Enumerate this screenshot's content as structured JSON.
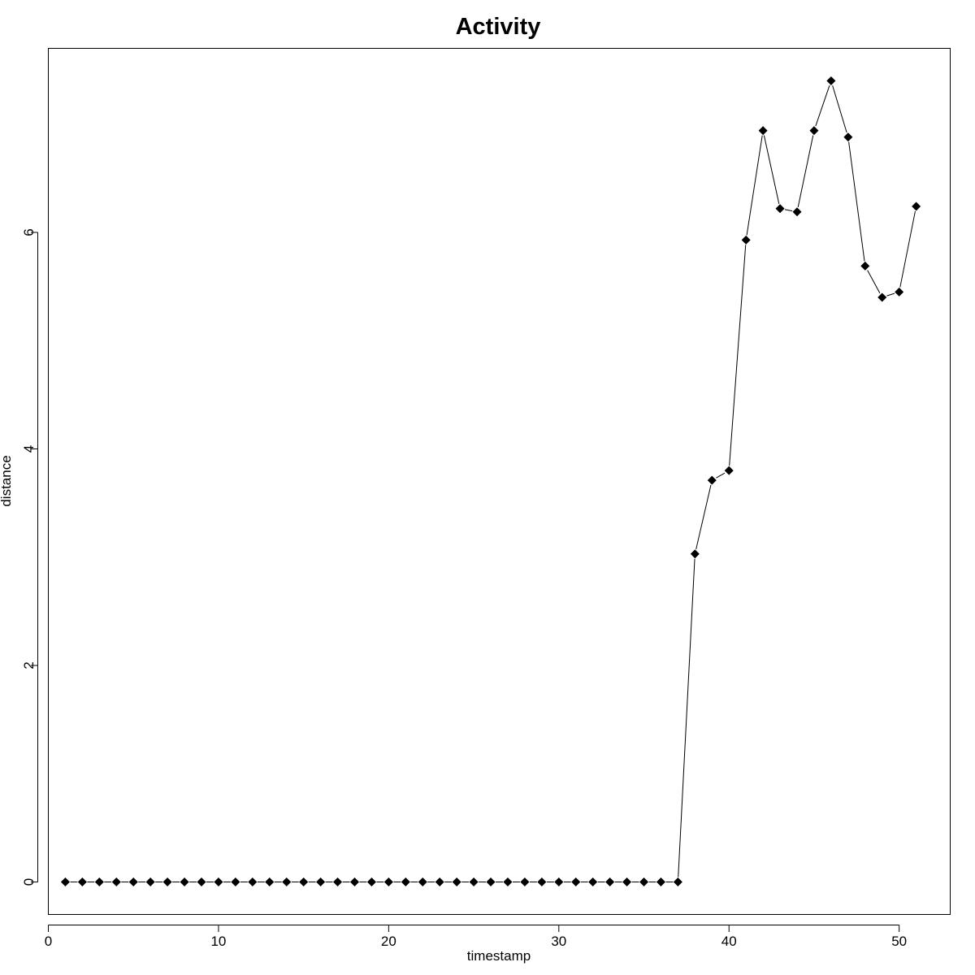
{
  "chart_data": {
    "type": "line",
    "title": "Activity",
    "xlabel": "timestamp",
    "ylabel": "distance",
    "xlim": [
      0,
      53
    ],
    "ylim": [
      -0.3,
      7.7
    ],
    "x_ticks": [
      0,
      10,
      20,
      30,
      40,
      50
    ],
    "y_ticks": [
      0,
      2,
      4,
      6
    ],
    "marker": "filled-diamond",
    "line_color": "#000000",
    "marker_color": "#000000",
    "grid": false,
    "series": [
      {
        "x": [
          1,
          2,
          3,
          4,
          5,
          6,
          7,
          8,
          9,
          10,
          11,
          12,
          13,
          14,
          15,
          16,
          17,
          18,
          19,
          20,
          21,
          22,
          23,
          24,
          25,
          26,
          27,
          28,
          29,
          30,
          31,
          32,
          33,
          34,
          35,
          36,
          37,
          38,
          39,
          40,
          41,
          42,
          43,
          44,
          45,
          46,
          47,
          48,
          49,
          50,
          51
        ],
        "values": [
          0,
          0,
          0,
          0,
          0,
          0,
          0,
          0,
          0,
          0,
          0,
          0,
          0,
          0,
          0,
          0,
          0,
          0,
          0,
          0,
          0,
          0,
          0,
          0,
          0,
          0,
          0,
          0,
          0,
          0,
          0,
          0,
          0,
          0,
          0,
          0,
          0,
          3.03,
          3.71,
          3.8,
          5.93,
          6.94,
          6.22,
          6.19,
          6.94,
          7.4,
          6.88,
          5.69,
          5.4,
          5.45,
          6.24
        ]
      }
    ]
  }
}
